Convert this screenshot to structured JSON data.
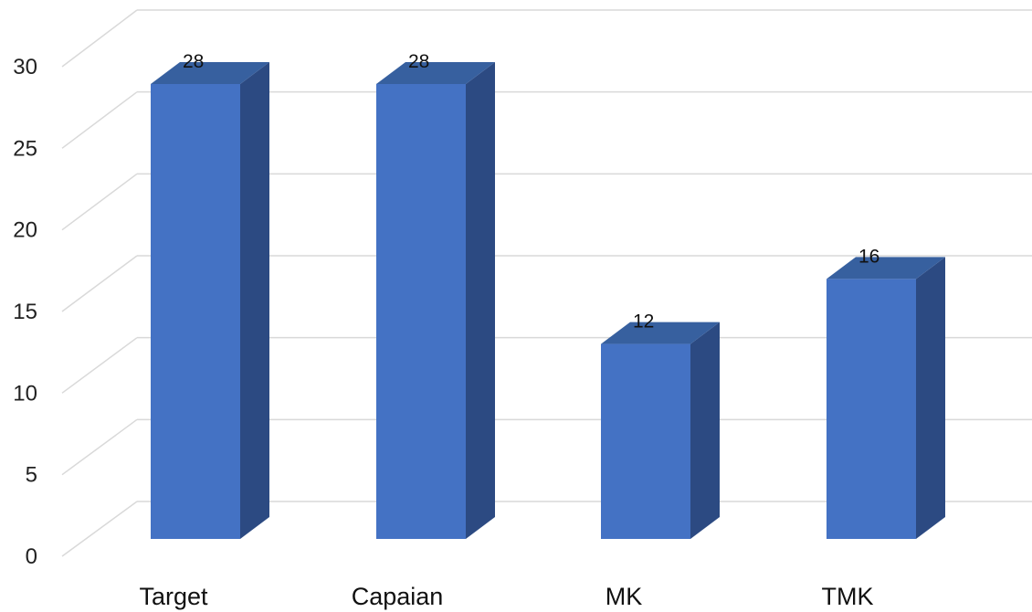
{
  "chart_data": {
    "type": "bar",
    "categories": [
      "Target",
      "Capaian",
      "MK",
      "TMK"
    ],
    "values": [
      28,
      28,
      12,
      16
    ],
    "data_labels": [
      "28",
      "28",
      "12",
      "16"
    ],
    "title": "",
    "xlabel": "",
    "ylabel": "",
    "ylim": [
      0,
      30
    ],
    "y_ticks": [
      0,
      5,
      10,
      15,
      20,
      25,
      30
    ],
    "y_tick_labels": [
      "0",
      "5",
      "10",
      "15",
      "20",
      "25",
      "30"
    ],
    "grid": true,
    "legend": "none",
    "style": "3d-column",
    "colors": {
      "bar_front": "#4472C4",
      "bar_side": "#2C4A82",
      "bar_top": "#37609F",
      "grid": "#D9D9D9"
    }
  }
}
